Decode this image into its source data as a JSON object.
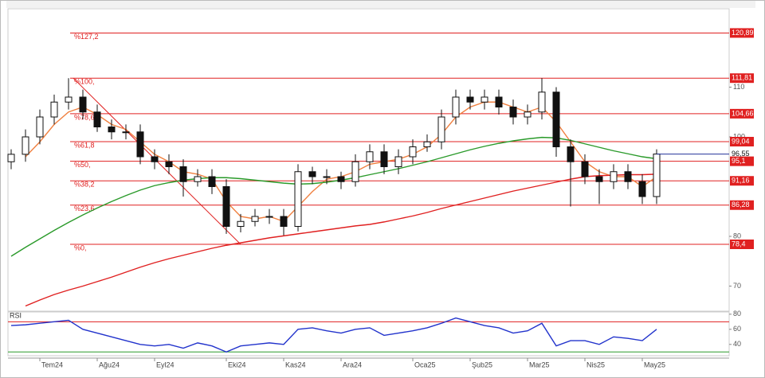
{
  "chart_data": {
    "type": "candlestick",
    "categories": [
      null,
      null,
      "Tem24",
      null,
      null,
      null,
      "Ağu24",
      null,
      null,
      null,
      "Eyl24",
      null,
      null,
      null,
      null,
      "Eki24",
      null,
      null,
      null,
      "Kas24",
      null,
      null,
      null,
      "Ara24",
      null,
      null,
      null,
      null,
      "Oca25",
      null,
      null,
      null,
      "Şub25",
      null,
      null,
      null,
      "Mar25",
      null,
      null,
      null,
      "Nis25",
      null,
      null,
      null,
      "May25",
      null
    ],
    "open": [
      95,
      96.5,
      100,
      104,
      107,
      108,
      105,
      102,
      101,
      101,
      96,
      95,
      94,
      91,
      92,
      90,
      82,
      83,
      84,
      84,
      82,
      93,
      92,
      92,
      91,
      95,
      97,
      94,
      96,
      98,
      99,
      104,
      108,
      107,
      108,
      106,
      104,
      105,
      109,
      98,
      95,
      92,
      91,
      93,
      91,
      88
    ],
    "high": [
      97.5,
      101.5,
      105.5,
      108.5,
      111.8,
      109.5,
      106.5,
      103.5,
      102.5,
      102.5,
      97.5,
      96.5,
      95.5,
      93.5,
      93.5,
      91.5,
      84.5,
      85.5,
      85.5,
      85.5,
      94.5,
      94,
      93.5,
      93,
      96.5,
      98.5,
      98.5,
      97.5,
      99.5,
      100.5,
      105.5,
      109.5,
      109.5,
      109.5,
      109.5,
      107.5,
      106.5,
      111.8,
      110,
      99.5,
      96.5,
      93.5,
      94.5,
      94.5,
      92.5,
      97.5
    ],
    "low": [
      93.5,
      95,
      98.5,
      102.5,
      105.5,
      103.5,
      101,
      99.5,
      99.5,
      94.5,
      93.5,
      92.5,
      88,
      90,
      88.5,
      80.5,
      80.8,
      82,
      82.5,
      80.2,
      81,
      90.5,
      90.5,
      89.5,
      90,
      93.5,
      92.5,
      92.5,
      94.5,
      97,
      97.5,
      102.5,
      105.5,
      105.5,
      104.5,
      102.5,
      102.5,
      103.5,
      96,
      86,
      90.5,
      86.5,
      89.5,
      89.5,
      86.5,
      86.5
    ],
    "close": [
      96.5,
      100,
      104,
      107,
      108,
      105,
      102,
      101,
      101,
      96,
      95,
      94,
      91,
      92,
      90,
      82,
      83,
      84,
      84,
      82,
      93,
      92,
      92,
      91,
      95,
      97,
      94,
      96,
      98,
      99,
      104,
      108,
      107,
      108,
      106,
      104,
      105,
      109,
      98,
      95,
      92,
      91,
      93,
      91,
      88,
      96.55
    ],
    "series": [
      {
        "color": "#f08040",
        "values": [
          null,
          96,
          99,
          102.5,
          105,
          106,
          104.5,
          102.5,
          101.5,
          99,
          96.5,
          95,
          93,
          92.5,
          91.5,
          87,
          84,
          83.5,
          84,
          83,
          86,
          89,
          91.5,
          92,
          93,
          94.5,
          95,
          95.5,
          96.5,
          98,
          100.5,
          104,
          106,
          107,
          107,
          106,
          105,
          106,
          103,
          99,
          95,
          93,
          92,
          92,
          90,
          92
        ]
      },
      {
        "color": "#2a9a2a",
        "values": [
          76,
          77.8,
          79.5,
          81.2,
          82.8,
          84.3,
          85.7,
          87,
          88.2,
          89.3,
          90.2,
          90.8,
          91.3,
          91.6,
          91.8,
          91.8,
          91.6,
          91.3,
          91,
          90.7,
          90.5,
          90.6,
          90.9,
          91.3,
          91.8,
          92.4,
          93,
          93.6,
          94.3,
          95,
          95.8,
          96.6,
          97.4,
          98.1,
          98.7,
          99.2,
          99.6,
          99.9,
          99.8,
          99.3,
          98.6,
          97.9,
          97.2,
          96.6,
          96,
          95.6
        ]
      },
      {
        "color": "#e02020",
        "values": [
          null,
          66,
          67.2,
          68.3,
          69.2,
          70,
          70.9,
          71.8,
          72.8,
          73.8,
          74.7,
          75.5,
          76.2,
          76.9,
          77.6,
          78.2,
          78.7,
          79.2,
          79.7,
          80.1,
          80.5,
          80.9,
          81.3,
          81.7,
          82.1,
          82.4,
          82.9,
          83.5,
          84.1,
          84.8,
          85.6,
          86.3,
          87,
          87.7,
          88.4,
          89.1,
          89.7,
          90.3,
          90.9,
          91.5,
          92,
          92.2,
          92.3,
          92.4,
          92.4,
          92.5
        ]
      }
    ],
    "ylim": [
      65,
      126
    ],
    "yticks": [
      70,
      80,
      100,
      110
    ],
    "fib_levels": [
      {
        "label": "%127,2",
        "value": 120.89,
        "value_label": "120,89"
      },
      {
        "label": "%100,",
        "value": 111.81,
        "value_label": "111,81"
      },
      {
        "label": "%78,6",
        "value": 104.66,
        "value_label": "104,66"
      },
      {
        "label": "%61,8",
        "value": 99.04,
        "value_label": "99,04"
      },
      {
        "label": "%50,",
        "value": 95.1,
        "value_label": "95,1"
      },
      {
        "label": "%38,2",
        "value": 91.16,
        "value_label": "91,16"
      },
      {
        "label": "%23,6",
        "value": 86.28,
        "value_label": "86,28"
      },
      {
        "label": "%0,",
        "value": 78.4,
        "value_label": "78,4"
      }
    ],
    "fib_color": "#e02020",
    "last_price": {
      "value": 96.55,
      "label": "96,55"
    },
    "rsi": {
      "title": "RSI",
      "color": "#2233cc",
      "ylim": [
        25,
        83
      ],
      "yticks": [
        40,
        60,
        80
      ],
      "upper": 70,
      "lower": 30,
      "values": [
        65,
        66,
        68,
        70,
        72,
        60,
        55,
        50,
        45,
        40,
        38,
        40,
        35,
        42,
        38,
        30,
        38,
        40,
        42,
        40,
        60,
        62,
        58,
        55,
        60,
        62,
        52,
        55,
        58,
        62,
        68,
        75,
        70,
        65,
        62,
        55,
        58,
        68,
        38,
        45,
        45,
        40,
        50,
        48,
        45,
        60
      ]
    }
  }
}
